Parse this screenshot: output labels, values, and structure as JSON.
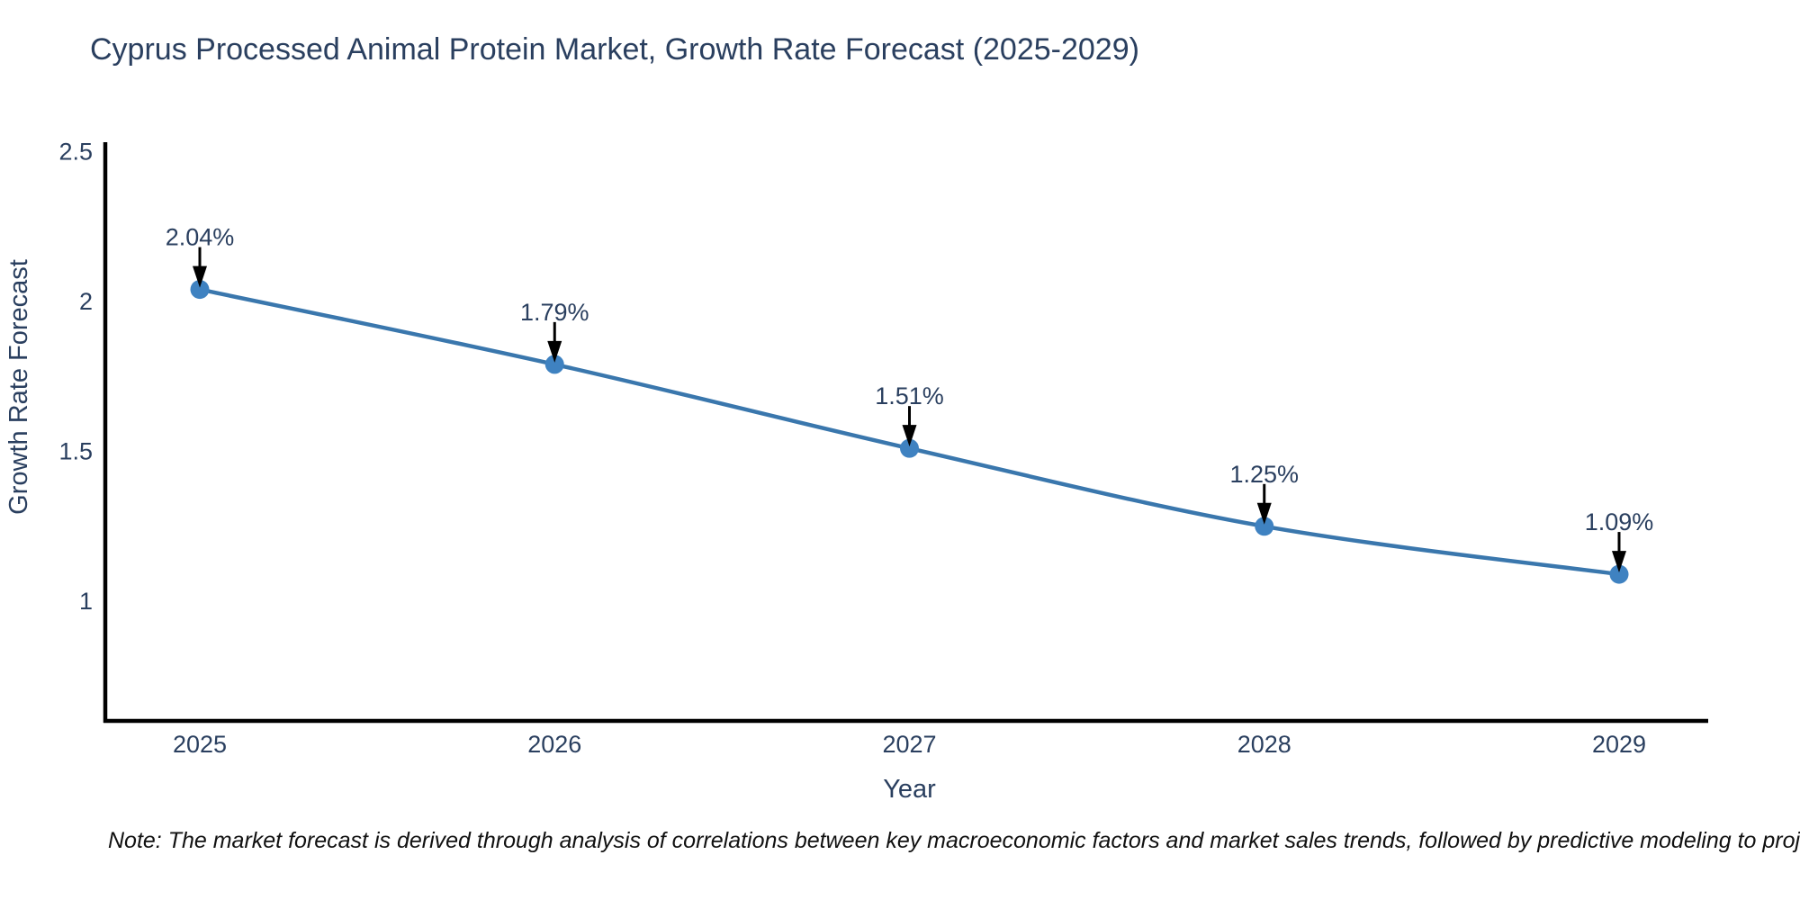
{
  "title": "Cyprus Processed Animal Protein Market, Growth Rate Forecast (2025-2029)",
  "note": "Note: The market forecast is derived through analysis of correlations between key macroeconomic factors and market sales trends, followed by predictive modeling to project future sales",
  "chart_data": {
    "type": "line",
    "x": [
      2025,
      2026,
      2027,
      2028,
      2029
    ],
    "values": [
      2.04,
      1.79,
      1.51,
      1.25,
      1.09
    ],
    "point_labels": [
      "2.04%",
      "1.79%",
      "1.51%",
      "1.25%",
      "1.09%"
    ],
    "xlabel": "Year",
    "ylabel": "Growth Rate Forecast",
    "yticks": [
      2.5,
      2,
      1.5,
      1
    ],
    "ytick_labels": [
      "2.5",
      "2",
      "1.5",
      "1"
    ],
    "ylim": [
      0.601,
      2.531
    ],
    "grid": false,
    "legend": "none",
    "colors": {
      "line": "#3a77ad",
      "marker": "#3f82c1",
      "axis": "#000000",
      "text": "#2a3f5f",
      "annotation_arrow": "#000000"
    }
  }
}
